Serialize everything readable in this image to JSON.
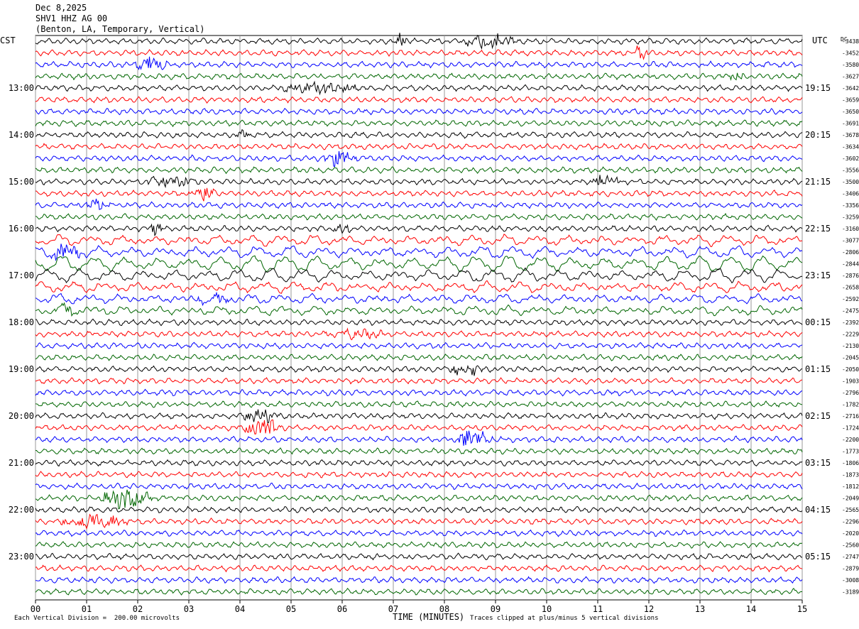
{
  "header": {
    "date": "Dec 8,2025",
    "station": "SHV1 HHZ AG 00",
    "location": "(Benton, LA, Temporary, Vertical)"
  },
  "left_axis_title": "CST",
  "right_axis_title": "UTC",
  "dc_label": "DC",
  "footer": {
    "scale": "Each Vertical Division =  200.00 microvolts",
    "xlabel": "TIME (MINUTES)",
    "clip_note": "Traces clipped at plus/minus 5 vertical divisions"
  },
  "colors": {
    "trace_cycle": [
      "#000000",
      "#ff0000",
      "#0000ff",
      "#006600"
    ],
    "grid": "#999999",
    "background": "#ffffff"
  },
  "chart_data": {
    "type": "line",
    "title": "SHV1 HHZ AG 00",
    "xlabel": "TIME (MINUTES)",
    "x_ticks": [
      "00",
      "01",
      "02",
      "03",
      "04",
      "05",
      "06",
      "07",
      "08",
      "09",
      "10",
      "11",
      "12",
      "13",
      "14",
      "15"
    ],
    "xlim": [
      0,
      15
    ],
    "traces_per_hour": 4,
    "trace_minutes": 15,
    "left_hour_labels": [
      {
        "row": 4,
        "label": "13:00"
      },
      {
        "row": 8,
        "label": "14:00"
      },
      {
        "row": 12,
        "label": "15:00"
      },
      {
        "row": 16,
        "label": "16:00"
      },
      {
        "row": 20,
        "label": "17:00"
      },
      {
        "row": 24,
        "label": "18:00"
      },
      {
        "row": 28,
        "label": "19:00"
      },
      {
        "row": 32,
        "label": "20:00"
      },
      {
        "row": 36,
        "label": "21:00"
      },
      {
        "row": 40,
        "label": "22:00"
      },
      {
        "row": 44,
        "label": "23:00"
      }
    ],
    "right_hour_labels": [
      {
        "row": 4,
        "label": "19:15"
      },
      {
        "row": 8,
        "label": "20:15"
      },
      {
        "row": 12,
        "label": "21:15"
      },
      {
        "row": 16,
        "label": "22:15"
      },
      {
        "row": 20,
        "label": "23:15"
      },
      {
        "row": 24,
        "label": "00:15"
      },
      {
        "row": 28,
        "label": "01:15"
      },
      {
        "row": 32,
        "label": "02:15"
      },
      {
        "row": 36,
        "label": "03:15"
      },
      {
        "row": 40,
        "label": "04:15"
      },
      {
        "row": 44,
        "label": "05:15"
      }
    ],
    "dc_offsets": [
      "-3438",
      "-3452",
      "-3580",
      "-3627",
      "-3642",
      "-3659",
      "-3650",
      "-3691",
      "-3678",
      "-3634",
      "-3602",
      "-3556",
      "-3500",
      "-3406",
      "-3356",
      "-3259",
      "-3160",
      "-3077",
      "-2806",
      "-2844",
      "-2876",
      "-2658",
      "-2592",
      "-2475",
      "-2392",
      "-2229",
      "-2130",
      "-2045",
      "-2050",
      "-1903",
      "-2796",
      "-1782",
      "-2716",
      "-1724",
      "-2200",
      "-1773",
      "-1806",
      "-1873",
      "-1812",
      "-2049",
      "-2565",
      "-2296",
      "-2020",
      "-2560",
      "-2747",
      "-2879",
      "-3008",
      "-3189"
    ],
    "events": [
      {
        "row": 0,
        "start_min": 7.0,
        "end_min": 7.3,
        "amp": 10
      },
      {
        "row": 0,
        "start_min": 8.3,
        "end_min": 9.5,
        "amp": 11
      },
      {
        "row": 1,
        "start_min": 11.7,
        "end_min": 12.0,
        "amp": 12
      },
      {
        "row": 2,
        "start_min": 1.9,
        "end_min": 2.6,
        "amp": 11
      },
      {
        "row": 3,
        "start_min": 13.5,
        "end_min": 14.0,
        "amp": 6
      },
      {
        "row": 4,
        "start_min": 4.6,
        "end_min": 6.5,
        "amp": 6
      },
      {
        "row": 8,
        "start_min": 3.9,
        "end_min": 4.2,
        "amp": 6
      },
      {
        "row": 10,
        "start_min": 5.6,
        "end_min": 6.3,
        "amp": 10
      },
      {
        "row": 12,
        "start_min": 2.0,
        "end_min": 3.3,
        "amp": 6
      },
      {
        "row": 12,
        "start_min": 10.8,
        "end_min": 11.5,
        "amp": 9
      },
      {
        "row": 13,
        "start_min": 2.9,
        "end_min": 3.6,
        "amp": 9
      },
      {
        "row": 14,
        "start_min": 0.8,
        "end_min": 1.5,
        "amp": 7
      },
      {
        "row": 16,
        "start_min": 2.2,
        "end_min": 2.5,
        "amp": 7
      },
      {
        "row": 16,
        "start_min": 5.8,
        "end_min": 6.2,
        "amp": 6
      },
      {
        "row": 18,
        "start_min": 0.2,
        "end_min": 1.0,
        "amp": 9
      },
      {
        "row": 22,
        "start_min": 3.1,
        "end_min": 3.9,
        "amp": 6
      },
      {
        "row": 23,
        "start_min": 0.3,
        "end_min": 0.9,
        "amp": 7
      },
      {
        "row": 25,
        "start_min": 5.5,
        "end_min": 7.0,
        "amp": 5
      },
      {
        "row": 28,
        "start_min": 8.0,
        "end_min": 8.8,
        "amp": 8
      },
      {
        "row": 32,
        "start_min": 4.0,
        "end_min": 4.8,
        "amp": 9
      },
      {
        "row": 33,
        "start_min": 4.0,
        "end_min": 4.9,
        "amp": 13
      },
      {
        "row": 34,
        "start_min": 8.1,
        "end_min": 9.0,
        "amp": 13
      },
      {
        "row": 39,
        "start_min": 1.2,
        "end_min": 2.3,
        "amp": 13
      },
      {
        "row": 41,
        "start_min": 0.4,
        "end_min": 1.9,
        "amp": 10
      }
    ],
    "long_period_rows": [
      {
        "row": 17,
        "amp": 5
      },
      {
        "row": 18,
        "amp": 6
      },
      {
        "row": 19,
        "amp": 9
      },
      {
        "row": 20,
        "amp": 7
      },
      {
        "row": 21,
        "amp": 5
      },
      {
        "row": 22,
        "amp": 4
      },
      {
        "row": 23,
        "amp": 4
      }
    ]
  }
}
